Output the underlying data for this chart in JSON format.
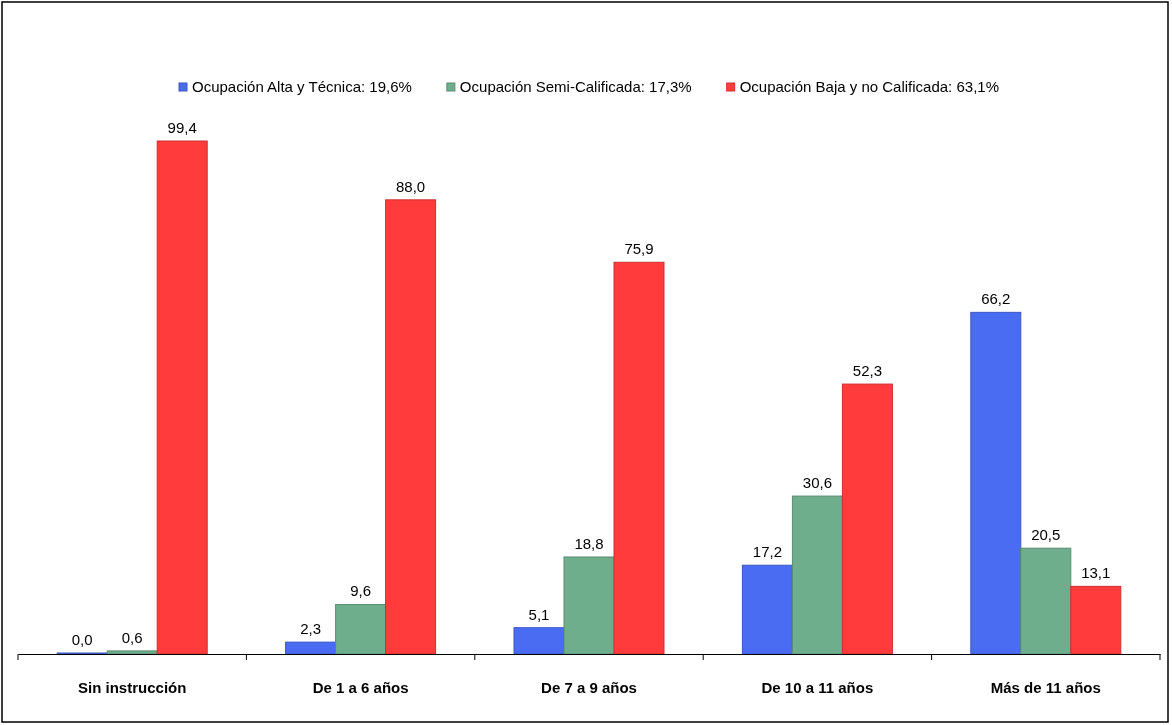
{
  "chart_data": {
    "type": "bar",
    "categories": [
      "Sin instrucción",
      "De 1 a 6 años",
      "De 7 a 9 años",
      "De 10 a 11 años",
      "Más de 11 años"
    ],
    "series": [
      {
        "name": "Ocupación Alta y Técnica: 19,6%",
        "color": "#4a6cf2",
        "values": [
          0.0,
          2.3,
          5.1,
          17.2,
          66.2
        ],
        "value_labels": [
          "0,0",
          "2,3",
          "5,1",
          "17,2",
          "66,2"
        ]
      },
      {
        "name": "Ocupación Semi-Calificada: 17,3%",
        "color": "#6fae8c",
        "values": [
          0.6,
          9.6,
          18.8,
          30.6,
          20.5
        ],
        "value_labels": [
          "0,6",
          "9,6",
          "18,8",
          "30,6",
          "20,5"
        ]
      },
      {
        "name": "Ocupación Baja y no Calificada: 63,1%",
        "color": "#ff3b3b",
        "values": [
          99.4,
          88.0,
          75.9,
          52.3,
          13.1
        ],
        "value_labels": [
          "99,4",
          "88,0",
          "75,9",
          "52,3",
          "13,1"
        ]
      }
    ],
    "legend": "top",
    "tick_labels": "x"
  }
}
